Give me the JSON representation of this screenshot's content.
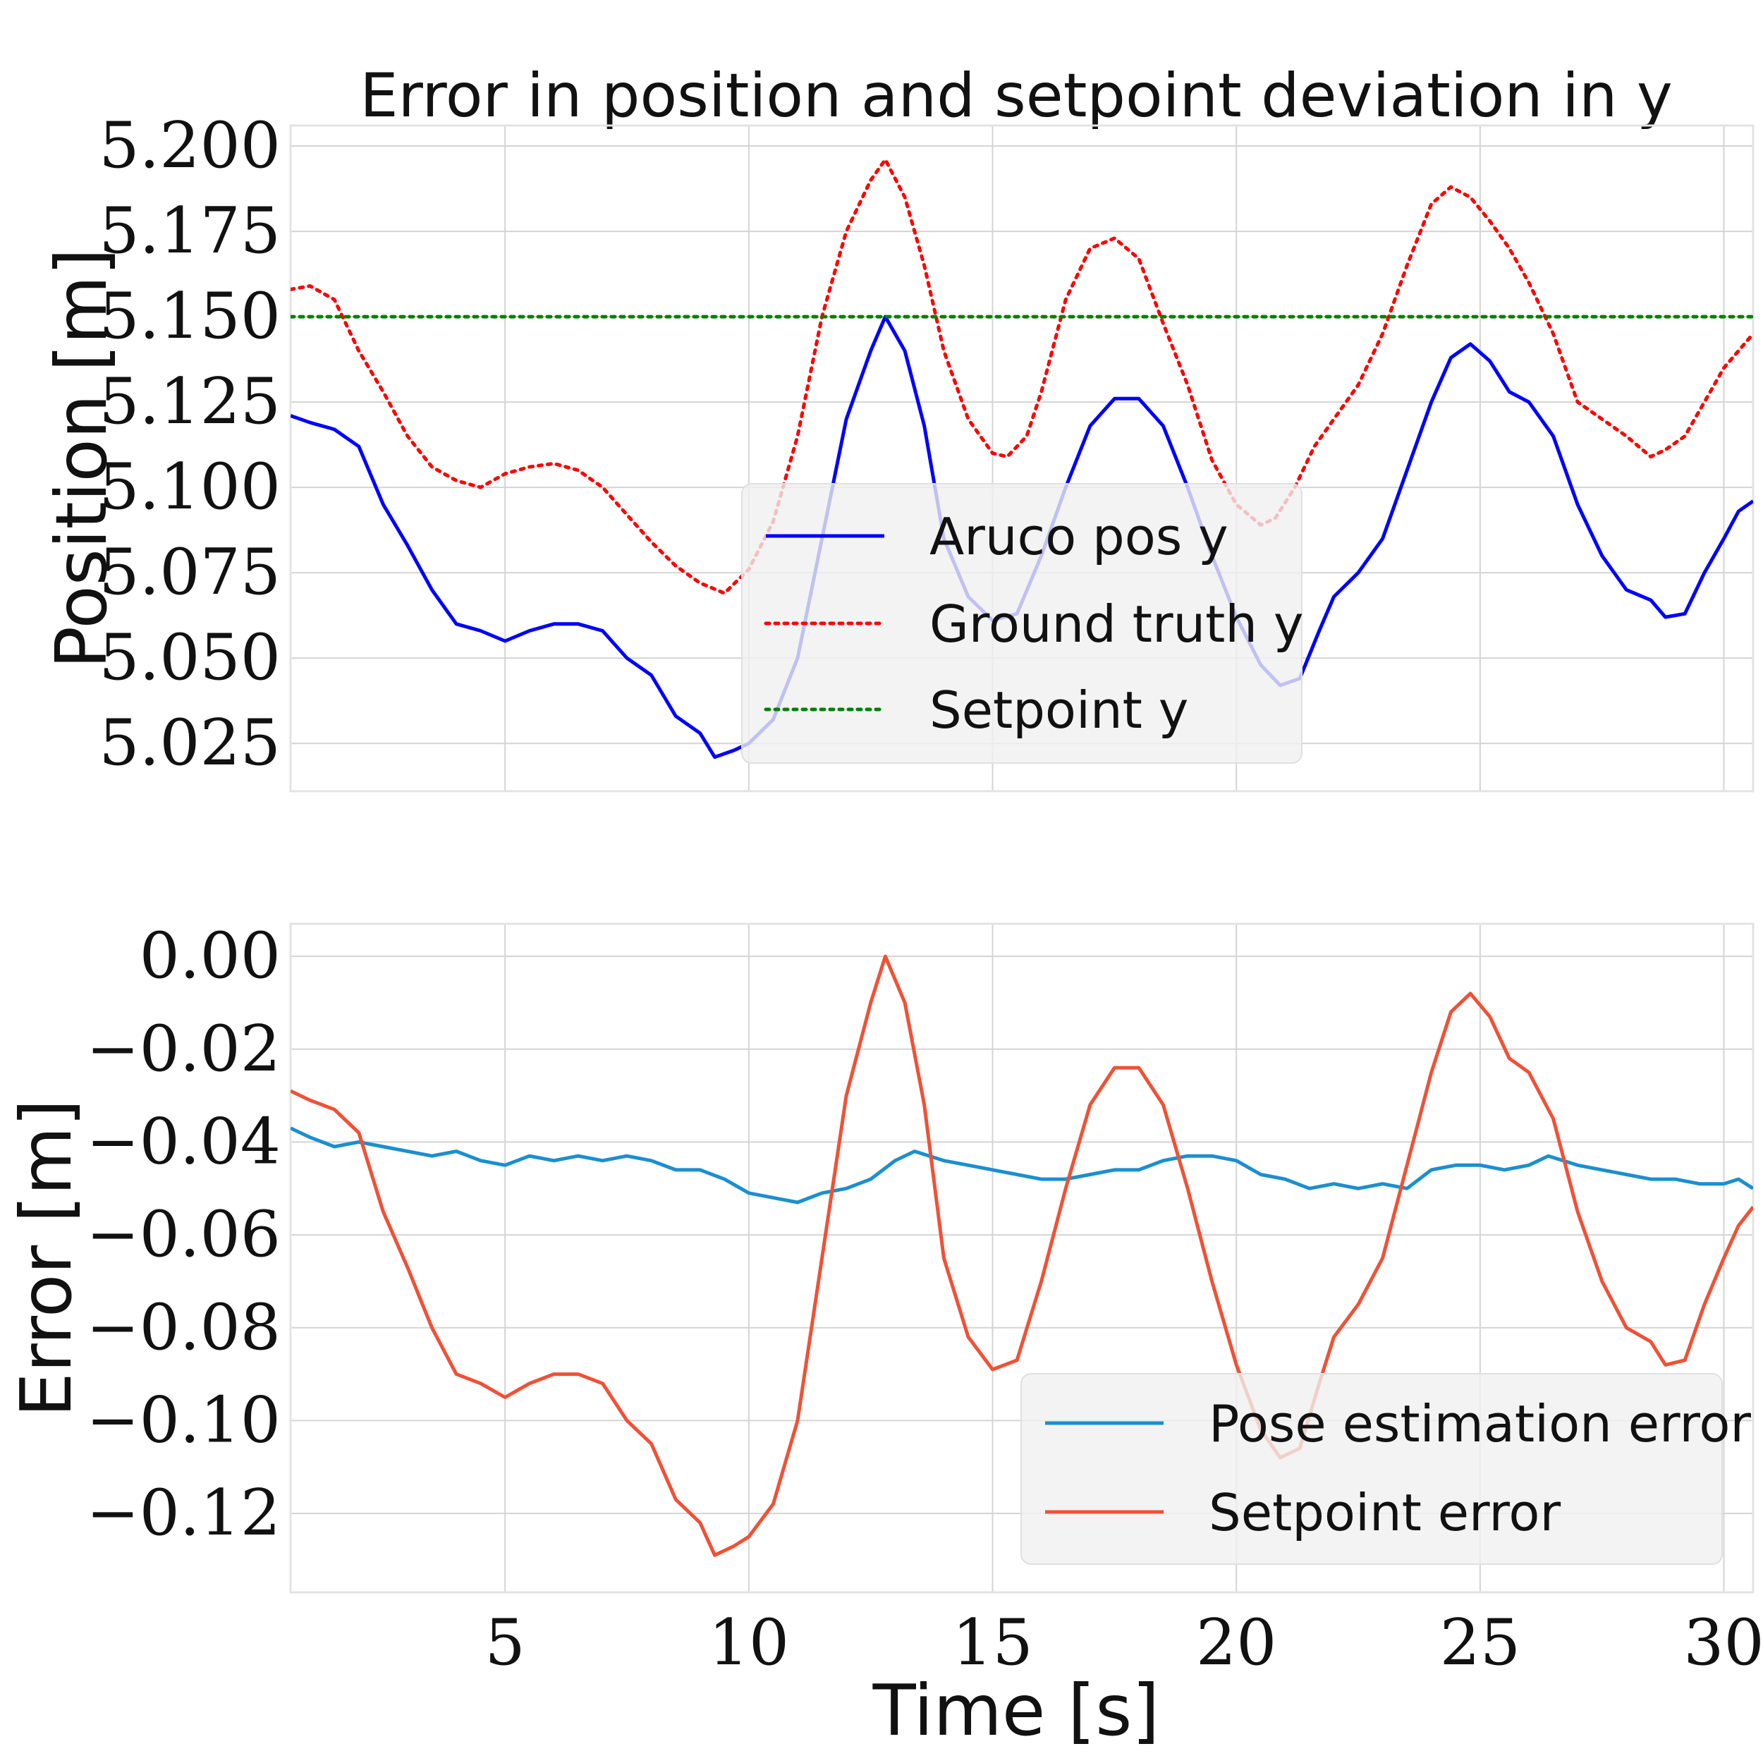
{
  "chart_data": [
    {
      "type": "line",
      "title": "Error in position and setpoint deviation in y",
      "xlabel": "",
      "ylabel": "Position [m]",
      "xlim": [
        0.6,
        30.6
      ],
      "ylim": [
        5.011,
        5.206
      ],
      "xticks": [
        5,
        10,
        15,
        20,
        25,
        30
      ],
      "show_x_tick_labels": false,
      "yticks": [
        {
          "value": 5.025,
          "label": "5.025"
        },
        {
          "value": 5.05,
          "label": "5.050"
        },
        {
          "value": 5.075,
          "label": "5.075"
        },
        {
          "value": 5.1,
          "label": "5.100"
        },
        {
          "value": 5.125,
          "label": "5.125"
        },
        {
          "value": 5.15,
          "label": "5.150"
        },
        {
          "value": 5.175,
          "label": "5.175"
        },
        {
          "value": 5.2,
          "label": "5.200"
        }
      ],
      "grid": true,
      "legend_position": "center",
      "series": [
        {
          "name": "Aruco pos y",
          "color": "#0000ff",
          "style": "solid",
          "x": [
            0.6,
            1.0,
            1.5,
            2.0,
            2.5,
            3.0,
            3.5,
            4.0,
            4.5,
            5.0,
            5.5,
            6.0,
            6.5,
            7.0,
            7.5,
            8.0,
            8.5,
            9.0,
            9.3,
            9.7,
            10.0,
            10.5,
            11.0,
            11.5,
            12.0,
            12.5,
            12.8,
            13.2,
            13.6,
            14.0,
            14.5,
            15.0,
            15.5,
            16.0,
            16.5,
            17.0,
            17.5,
            18.0,
            18.5,
            19.0,
            19.5,
            20.0,
            20.5,
            20.9,
            21.3,
            21.7,
            22.0,
            22.5,
            23.0,
            23.5,
            24.0,
            24.4,
            24.8,
            25.2,
            25.6,
            26.0,
            26.5,
            27.0,
            27.5,
            28.0,
            28.5,
            28.8,
            29.2,
            29.6,
            30.0,
            30.3,
            30.6
          ],
          "y": [
            5.121,
            5.119,
            5.117,
            5.112,
            5.095,
            5.083,
            5.07,
            5.06,
            5.058,
            5.055,
            5.058,
            5.06,
            5.06,
            5.058,
            5.05,
            5.045,
            5.033,
            5.028,
            5.021,
            5.023,
            5.025,
            5.032,
            5.05,
            5.085,
            5.12,
            5.14,
            5.15,
            5.14,
            5.118,
            5.085,
            5.068,
            5.061,
            5.063,
            5.08,
            5.1,
            5.118,
            5.126,
            5.126,
            5.118,
            5.1,
            5.08,
            5.062,
            5.048,
            5.042,
            5.044,
            5.058,
            5.068,
            5.075,
            5.085,
            5.105,
            5.125,
            5.138,
            5.142,
            5.137,
            5.128,
            5.125,
            5.115,
            5.095,
            5.08,
            5.07,
            5.067,
            5.062,
            5.063,
            5.075,
            5.085,
            5.093,
            5.096
          ]
        },
        {
          "name": "Ground truth y",
          "color": "#ff0000",
          "style": "dotted",
          "x": [
            0.6,
            1.0,
            1.5,
            2.0,
            2.5,
            3.0,
            3.5,
            4.0,
            4.5,
            5.0,
            5.5,
            6.0,
            6.5,
            7.0,
            7.5,
            8.0,
            8.5,
            9.0,
            9.5,
            10.0,
            10.5,
            11.0,
            11.5,
            12.0,
            12.5,
            12.8,
            13.2,
            13.6,
            14.0,
            14.5,
            15.0,
            15.3,
            15.7,
            16.0,
            16.5,
            17.0,
            17.5,
            18.0,
            18.5,
            19.0,
            19.5,
            20.0,
            20.5,
            20.8,
            21.2,
            21.6,
            22.0,
            22.5,
            23.0,
            23.5,
            24.0,
            24.4,
            24.8,
            25.2,
            25.6,
            26.0,
            26.5,
            27.0,
            27.5,
            28.0,
            28.5,
            28.8,
            29.2,
            29.6,
            30.0,
            30.3,
            30.6
          ],
          "y": [
            5.158,
            5.159,
            5.155,
            5.14,
            5.128,
            5.115,
            5.106,
            5.102,
            5.1,
            5.104,
            5.106,
            5.107,
            5.105,
            5.1,
            5.092,
            5.084,
            5.077,
            5.072,
            5.069,
            5.076,
            5.09,
            5.115,
            5.15,
            5.175,
            5.19,
            5.196,
            5.185,
            5.165,
            5.14,
            5.12,
            5.11,
            5.109,
            5.115,
            5.128,
            5.155,
            5.17,
            5.173,
            5.167,
            5.148,
            5.13,
            5.108,
            5.095,
            5.089,
            5.091,
            5.1,
            5.112,
            5.12,
            5.13,
            5.145,
            5.165,
            5.183,
            5.188,
            5.185,
            5.178,
            5.17,
            5.16,
            5.145,
            5.125,
            5.12,
            5.115,
            5.109,
            5.111,
            5.115,
            5.125,
            5.135,
            5.14,
            5.145
          ]
        },
        {
          "name": "Setpoint y",
          "color": "#008000",
          "style": "dotted",
          "x": [
            0.6,
            30.6
          ],
          "y": [
            5.15,
            5.15
          ]
        }
      ]
    },
    {
      "type": "line",
      "title": "",
      "xlabel": "Time [s]",
      "ylabel": "Error [m]",
      "xlim": [
        0.6,
        30.6
      ],
      "ylim": [
        -0.137,
        0.007
      ],
      "xticks": [
        5,
        10,
        15,
        20,
        25,
        30
      ],
      "xtick_labels": [
        "5",
        "10",
        "15",
        "20",
        "25",
        "30"
      ],
      "show_x_tick_labels": true,
      "yticks": [
        {
          "value": -0.12,
          "label": "−0.12"
        },
        {
          "value": -0.1,
          "label": "−0.10"
        },
        {
          "value": -0.08,
          "label": "−0.08"
        },
        {
          "value": -0.06,
          "label": "−0.06"
        },
        {
          "value": -0.04,
          "label": "−0.04"
        },
        {
          "value": -0.02,
          "label": "−0.02"
        },
        {
          "value": 0.0,
          "label": "0.00"
        }
      ],
      "grid": true,
      "legend_position": "lower right",
      "series": [
        {
          "name": "Pose estimation error",
          "color": "#1b8fcf",
          "style": "solid",
          "x": [
            0.6,
            1.0,
            1.5,
            2.0,
            2.5,
            3.0,
            3.5,
            4.0,
            4.5,
            5.0,
            5.5,
            6.0,
            6.5,
            7.0,
            7.5,
            8.0,
            8.5,
            9.0,
            9.5,
            10.0,
            10.5,
            11.0,
            11.5,
            12.0,
            12.5,
            13.0,
            13.4,
            14.0,
            14.5,
            15.0,
            15.5,
            16.0,
            16.5,
            17.0,
            17.5,
            18.0,
            18.5,
            19.0,
            19.5,
            20.0,
            20.5,
            21.0,
            21.5,
            22.0,
            22.5,
            23.0,
            23.5,
            24.0,
            24.5,
            25.0,
            25.5,
            26.0,
            26.4,
            27.0,
            27.5,
            28.0,
            28.5,
            29.0,
            29.5,
            30.0,
            30.3,
            30.6
          ],
          "y": [
            -0.037,
            -0.039,
            -0.041,
            -0.04,
            -0.041,
            -0.042,
            -0.043,
            -0.042,
            -0.044,
            -0.045,
            -0.043,
            -0.044,
            -0.043,
            -0.044,
            -0.043,
            -0.044,
            -0.046,
            -0.046,
            -0.048,
            -0.051,
            -0.052,
            -0.053,
            -0.051,
            -0.05,
            -0.048,
            -0.044,
            -0.042,
            -0.044,
            -0.045,
            -0.046,
            -0.047,
            -0.048,
            -0.048,
            -0.047,
            -0.046,
            -0.046,
            -0.044,
            -0.043,
            -0.043,
            -0.044,
            -0.047,
            -0.048,
            -0.05,
            -0.049,
            -0.05,
            -0.049,
            -0.05,
            -0.046,
            -0.045,
            -0.045,
            -0.046,
            -0.045,
            -0.043,
            -0.045,
            -0.046,
            -0.047,
            -0.048,
            -0.048,
            -0.049,
            -0.049,
            -0.048,
            -0.05
          ]
        },
        {
          "name": "Setpoint error",
          "color": "#f05136",
          "style": "solid",
          "x": [
            0.6,
            1.0,
            1.5,
            2.0,
            2.5,
            3.0,
            3.5,
            4.0,
            4.5,
            5.0,
            5.5,
            6.0,
            6.5,
            7.0,
            7.5,
            8.0,
            8.5,
            9.0,
            9.3,
            9.7,
            10.0,
            10.5,
            11.0,
            11.5,
            12.0,
            12.5,
            12.8,
            13.2,
            13.6,
            14.0,
            14.5,
            15.0,
            15.5,
            16.0,
            16.5,
            17.0,
            17.5,
            18.0,
            18.5,
            19.0,
            19.5,
            20.0,
            20.5,
            20.9,
            21.3,
            21.7,
            22.0,
            22.5,
            23.0,
            23.5,
            24.0,
            24.4,
            24.8,
            25.2,
            25.6,
            26.0,
            26.5,
            27.0,
            27.5,
            28.0,
            28.5,
            28.8,
            29.2,
            29.6,
            30.0,
            30.3,
            30.6
          ],
          "y": [
            -0.029,
            -0.031,
            -0.033,
            -0.038,
            -0.055,
            -0.067,
            -0.08,
            -0.09,
            -0.092,
            -0.095,
            -0.092,
            -0.09,
            -0.09,
            -0.092,
            -0.1,
            -0.105,
            -0.117,
            -0.122,
            -0.129,
            -0.127,
            -0.125,
            -0.118,
            -0.1,
            -0.065,
            -0.03,
            -0.01,
            0.0,
            -0.01,
            -0.032,
            -0.065,
            -0.082,
            -0.089,
            -0.087,
            -0.07,
            -0.05,
            -0.032,
            -0.024,
            -0.024,
            -0.032,
            -0.05,
            -0.07,
            -0.088,
            -0.102,
            -0.108,
            -0.106,
            -0.092,
            -0.082,
            -0.075,
            -0.065,
            -0.045,
            -0.025,
            -0.012,
            -0.008,
            -0.013,
            -0.022,
            -0.025,
            -0.035,
            -0.055,
            -0.07,
            -0.08,
            -0.083,
            -0.088,
            -0.087,
            -0.075,
            -0.065,
            -0.058,
            -0.054
          ]
        }
      ]
    }
  ]
}
